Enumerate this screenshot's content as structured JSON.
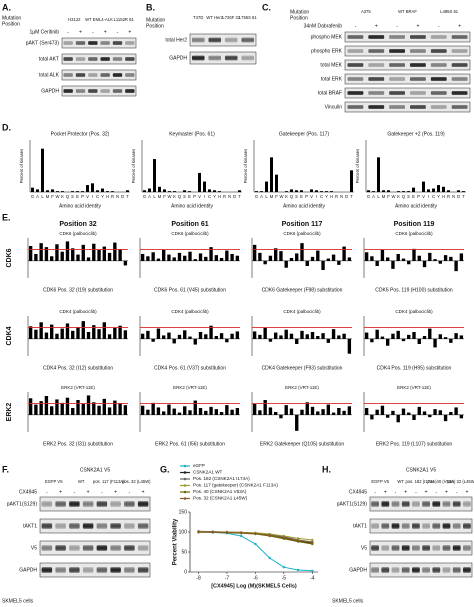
{
  "blots": {
    "A": {
      "label": "A.",
      "header": [
        "Mutation",
        "Position"
      ],
      "groups": [
        "H3122",
        "WT EML4-ALK",
        "L1152R 61"
      ],
      "treatment": "1µM Ceritinib",
      "signs": [
        "-",
        "+",
        "-",
        "+",
        "-",
        "+"
      ],
      "rows": [
        "pAKT (Ser473)",
        "total AKT",
        "total ALK",
        "GAPDH"
      ]
    },
    "B": {
      "label": "B.",
      "header": [
        "Mutation",
        "Position"
      ],
      "groups": [
        "T47D",
        "WT Her2",
        "L726F 32",
        "L755S 61"
      ],
      "rows": [
        "total Her2",
        "GAPDH"
      ]
    },
    "C": {
      "label": "C.",
      "header": [
        "Mutation",
        "Position"
      ],
      "groups": [
        "A375",
        "WT BRAF",
        "L485S 61"
      ],
      "treatment": "34nM Dabrafenib",
      "signs": [
        "-",
        "+",
        "-",
        "+",
        "-",
        "+"
      ],
      "rows": [
        "phospho MEK",
        "phospho ERK",
        "total MEK",
        "total ERK",
        "total BRAF",
        "Vinculin"
      ]
    },
    "F": {
      "label": "F.",
      "title": "CSNK2A1 V5",
      "groups": [
        "EGFP V5",
        "WT",
        "pos. 117 (F113A)",
        "pos. 32 (L45W)"
      ],
      "treatment": "CX4945",
      "signs": [
        "-",
        "+",
        "-",
        "+",
        "-",
        "+",
        "-",
        "+"
      ],
      "rows": [
        "pAKT1(S129)",
        "tAKT1",
        "V5",
        "GAPDH"
      ],
      "footer": "SKMEL5 cells"
    },
    "H": {
      "label": "H.",
      "title": "CSNK2A1 V5",
      "groups": [
        "EGFP V5",
        "WT",
        "pos. 182 (I174A)",
        "pos. 40 (V53A)",
        "pos. 32 (L45W)"
      ],
      "treatment": "CX4945",
      "signs": [
        "-",
        "+",
        "-",
        "+",
        "-",
        "+",
        "-",
        "+",
        "-",
        "+"
      ],
      "rows": [
        "pAKT1(S129)",
        "tAKT1",
        "V5",
        "GAPDH"
      ],
      "footer": "SKMEL5 cells"
    }
  },
  "panel_D": {
    "label": "D."
  },
  "panel_E": {
    "label": "E.",
    "columns": [
      "Position 32",
      "Position 61",
      "Position 117",
      "Position 119"
    ],
    "rows": [
      "CDK6",
      "CDK4",
      "ERK2"
    ]
  },
  "panel_G": {
    "label": "G."
  },
  "chart_data": [
    {
      "type": "bar",
      "title": "Pocket Protector (Pos. 32)",
      "y_label": "Percent of kinases",
      "x_label": "Amino acid identity",
      "categories": [
        "G",
        "A",
        "L",
        "M",
        "F",
        "W",
        "K",
        "Q",
        "S",
        "E",
        "P",
        "V",
        "I",
        "C",
        "Y",
        "H",
        "R",
        "N",
        "D",
        "T"
      ],
      "values": [
        5,
        3,
        50,
        2,
        3,
        1,
        1,
        0,
        1,
        1,
        1,
        8,
        10,
        2,
        4,
        1,
        1,
        0,
        0,
        2
      ],
      "ylim": [
        0,
        60
      ],
      "color": "#000000"
    },
    {
      "type": "bar",
      "title": "Keymaster (Pos. 61)",
      "y_label": "Percent of kinases",
      "x_label": "Amino acid identity",
      "categories": [
        "G",
        "A",
        "L",
        "M",
        "F",
        "W",
        "K",
        "Q",
        "S",
        "E",
        "P",
        "V",
        "I",
        "C",
        "Y",
        "H",
        "R",
        "N",
        "D",
        "T"
      ],
      "values": [
        2,
        4,
        38,
        6,
        3,
        1,
        1,
        0,
        2,
        1,
        0,
        22,
        12,
        3,
        2,
        1,
        0,
        0,
        0,
        2
      ],
      "ylim": [
        0,
        60
      ],
      "color": "#000000"
    },
    {
      "type": "bar",
      "title": "Gatekeeper (Pos. 117)",
      "y_label": "Percent of kinases",
      "x_label": "Amino acid identity",
      "categories": [
        "G",
        "A",
        "L",
        "M",
        "F",
        "W",
        "K",
        "Q",
        "S",
        "E",
        "P",
        "V",
        "I",
        "C",
        "Y",
        "H",
        "R",
        "N",
        "D",
        "T"
      ],
      "values": [
        1,
        1,
        12,
        40,
        20,
        0,
        1,
        3,
        2,
        2,
        0,
        3,
        2,
        1,
        1,
        1,
        0,
        0,
        0,
        25
      ],
      "ylim": [
        0,
        60
      ],
      "color": "#000000"
    },
    {
      "type": "bar",
      "title": "Gatekeeper +2 (Pos. 119)",
      "y_label": "Percent of kinases",
      "x_label": "Amino acid identity",
      "categories": [
        "G",
        "A",
        "L",
        "M",
        "F",
        "W",
        "K",
        "Q",
        "S",
        "E",
        "P",
        "V",
        "I",
        "C",
        "Y",
        "H",
        "R",
        "N",
        "D",
        "T"
      ],
      "values": [
        2,
        1,
        40,
        2,
        2,
        0,
        1,
        1,
        1,
        5,
        0,
        12,
        3,
        4,
        8,
        6,
        2,
        0,
        2,
        1
      ],
      "ylim": [
        0,
        60
      ],
      "color": "#000000"
    },
    {
      "type": "zbar",
      "title": "CDK6 (palbociclib)",
      "x_label": "CDK6 Pos. 32 (I19) substitution",
      "values": [
        2.6,
        1.2,
        3.1,
        2.4,
        0.8,
        2.9,
        1.6,
        3.4,
        2.2,
        1.1,
        2.8,
        0.6,
        3.0,
        1.9,
        2.5,
        1.4,
        3.2,
        2.0,
        -0.8
      ],
      "ylim": [
        -3,
        4
      ],
      "reference_line": 2,
      "reference_color": "#d62728",
      "color": "#000000"
    },
    {
      "type": "zbar",
      "title": "CDK6 (palbociclib)",
      "x_label": "CDK6 Pos. 61 (V45) substitution",
      "values": [
        1.2,
        0.8,
        1.5,
        0.4,
        1.9,
        1.1,
        0.6,
        1.4,
        0.9,
        1.6,
        0.3,
        1.3,
        0.7,
        2.4,
        1.0,
        0.5,
        1.8,
        1.2,
        0.9
      ],
      "ylim": [
        -3,
        4
      ],
      "reference_line": 2,
      "reference_color": "#d62728",
      "color": "#000000"
    },
    {
      "type": "zbar",
      "title": "CDK6 (palbociclib)",
      "x_label": "CDK6 Gatekeeper (F98) substitution",
      "values": [
        2.8,
        1.4,
        -0.6,
        0.9,
        2.2,
        1.7,
        -1.2,
        0.5,
        1.3,
        3.1,
        -0.9,
        0.7,
        1.8,
        -1.6,
        0.4,
        1.1,
        -0.7,
        2.5,
        0.6
      ],
      "ylim": [
        -3,
        4
      ],
      "reference_line": 2,
      "reference_color": "#d62728",
      "color": "#000000"
    },
    {
      "type": "zbar",
      "title": "CDK6 (palbociclib)",
      "x_label": "CDK6 Pos. 119 (H100) substitution",
      "values": [
        1.5,
        0.8,
        -0.9,
        1.9,
        0.6,
        -1.4,
        1.2,
        0.4,
        -0.6,
        2.1,
        0.9,
        -1.1,
        1.4,
        0.3,
        -0.5,
        1.0,
        0.7,
        -1.8,
        1.3
      ],
      "ylim": [
        -3,
        4
      ],
      "reference_line": 2,
      "reference_color": "#d62728",
      "color": "#000000"
    },
    {
      "type": "zbar",
      "title": "CDK4 (palbociclib)",
      "x_label": "CDK4 Pos. 32 (I12) substitution",
      "values": [
        2.2,
        1.6,
        2.9,
        1.1,
        2.5,
        0.9,
        1.8,
        2.7,
        1.4,
        2.0,
        3.1,
        1.2,
        2.4,
        1.7,
        2.9,
        0.8,
        1.9,
        2.3,
        1.5
      ],
      "ylim": [
        -3,
        4
      ],
      "reference_line": 2,
      "reference_color": "#d62728",
      "color": "#000000"
    },
    {
      "type": "zbar",
      "title": "CDK4 (palbociclib)",
      "x_label": "CDK4 Pos. 61 (V37) substitution",
      "values": [
        0.9,
        1.4,
        -0.5,
        1.8,
        0.6,
        1.1,
        -0.8,
        0.7,
        1.5,
        0.4,
        -1.0,
        1.2,
        0.8,
        2.3,
        0.5,
        1.0,
        -0.6,
        0.9,
        1.3
      ],
      "ylim": [
        -3,
        4
      ],
      "reference_line": 2,
      "reference_color": "#d62728",
      "color": "#000000"
    },
    {
      "type": "zbar",
      "title": "CDK4 (palbociclib)",
      "x_label": "CDK4 Gatekeeper (F93) substitution",
      "values": [
        1.3,
        0.7,
        1.9,
        -0.5,
        1.1,
        0.6,
        1.6,
        0.9,
        -0.9,
        1.4,
        0.8,
        1.2,
        0.5,
        1.0,
        -0.7,
        1.7,
        0.6,
        0.9,
        -2.6
      ],
      "ylim": [
        -3,
        4
      ],
      "reference_line": 2,
      "reference_color": "#d62728",
      "color": "#000000"
    },
    {
      "type": "zbar",
      "title": "CDK4 (palbociclib)",
      "x_label": "CDK4 Pos. 119 (H95) substitution",
      "values": [
        1.1,
        -0.6,
        1.6,
        0.4,
        -1.2,
        0.9,
        1.4,
        -0.4,
        0.7,
        1.2,
        -0.9,
        0.5,
        1.8,
        -1.5,
        0.8,
        0.3,
        -0.7,
        1.0,
        0.6
      ],
      "ylim": [
        -3,
        4
      ],
      "reference_line": 2,
      "reference_color": "#d62728",
      "color": "#000000"
    },
    {
      "type": "zbar",
      "title": "ERK2 (VRT-11E)",
      "x_label": "ERK2 Pos. 32 (I31) substitution",
      "values": [
        2.9,
        1.8,
        2.4,
        3.3,
        1.5,
        2.7,
        2.1,
        3.0,
        1.2,
        2.6,
        1.9,
        3.4,
        2.2,
        1.6,
        2.8,
        1.3,
        2.5,
        2.0,
        1.7
      ],
      "ylim": [
        -3,
        4
      ],
      "reference_line": 2,
      "reference_color": "#d62728",
      "color": "#000000"
    },
    {
      "type": "zbar",
      "title": "ERK2 (VRT-11E)",
      "x_label": "ERK2 Pos. 61 (I56) substitution",
      "values": [
        1.6,
        0.9,
        2.1,
        1.3,
        0.6,
        1.8,
        1.1,
        0.4,
        1.5,
        0.8,
        2.5,
        1.2,
        0.7,
        1.4,
        1.0,
        0.5,
        1.7,
        0.9,
        1.2
      ],
      "ylim": [
        -3,
        4
      ],
      "reference_line": 2,
      "reference_color": "#d62728",
      "color": "#000000"
    },
    {
      "type": "zbar",
      "title": "ERK2 (VRT-11E)",
      "x_label": "ERK2 Gatekeeper (Q105) substitution",
      "values": [
        1.9,
        0.8,
        2.6,
        1.3,
        0.5,
        -0.6,
        1.7,
        1.1,
        -2.8,
        0.9,
        2.2,
        1.4,
        0.6,
        1.0,
        1.8,
        0.4,
        1.2,
        0.7,
        1.5
      ],
      "ylim": [
        -3,
        4
      ],
      "reference_line": 2,
      "reference_color": "#d62728",
      "color": "#000000"
    },
    {
      "type": "zbar",
      "title": "ERK2 (VRT-11E)",
      "x_label": "ERK2 Pos. 119 (L107) substitution",
      "values": [
        1.2,
        -0.8,
        0.9,
        1.6,
        -0.5,
        0.7,
        -1.3,
        1.1,
        0.4,
        -0.9,
        1.4,
        0.6,
        -0.4,
        1.0,
        0.8,
        -1.1,
        0.5,
        1.3,
        -0.6
      ],
      "ylim": [
        -3,
        4
      ],
      "reference_line": 2,
      "reference_color": "#d62728",
      "color": "#000000"
    },
    {
      "type": "line",
      "y_label": "Percent Viability",
      "x_label": "[CX4945] Log (M)(SKMEL5 Cells)",
      "x": [
        -8,
        -7.5,
        -7,
        -6.5,
        -6,
        -5.5,
        -5,
        -4.5,
        -4
      ],
      "series": [
        {
          "name": "eGFP",
          "color": "#1ab0c8",
          "values": [
            100,
            99,
            97,
            90,
            70,
            35,
            12,
            5,
            3
          ]
        },
        {
          "name": "CSNK2A1 WT",
          "color": "#222222",
          "values": [
            100,
            100,
            99,
            98,
            96,
            92,
            85,
            78,
            72
          ]
        },
        {
          "name": "Pos. 182 (CSNK2A1 I174A)",
          "color": "#666666",
          "values": [
            102,
            101,
            100,
            99,
            97,
            93,
            88,
            80,
            75
          ]
        },
        {
          "name": "Pos. 117 (gatekeeper) (CSNK2A1 F113A)",
          "color": "#9a9a30",
          "values": [
            101,
            100,
            100,
            99,
            98,
            95,
            90,
            84,
            80
          ]
        },
        {
          "name": "Pos. 40 (CSNK2A1 V53A)",
          "color": "#6b6b00",
          "values": [
            100,
            99,
            98,
            97,
            95,
            90,
            83,
            76,
            70
          ]
        },
        {
          "name": "Pos. 32 (CSNK2A1 L45W)",
          "color": "#8b5a2b",
          "values": [
            99,
            100,
            99,
            98,
            96,
            92,
            86,
            79,
            74
          ]
        }
      ],
      "xlim": [
        -8.3,
        -3.8
      ],
      "ylim": [
        0,
        150
      ],
      "xticks": [
        -8,
        -7,
        -6,
        -5,
        -4
      ],
      "yticks": [
        0,
        50,
        100,
        150
      ]
    }
  ]
}
